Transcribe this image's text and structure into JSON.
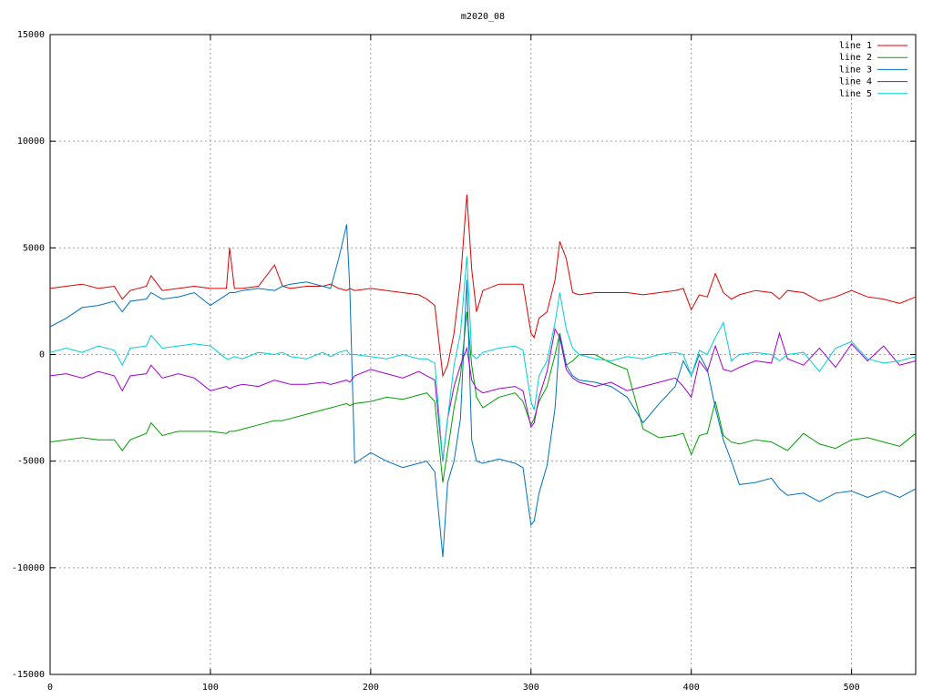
{
  "chart_data": {
    "type": "line",
    "title": "m2020_08",
    "x": [
      0,
      10,
      20,
      30,
      40,
      45,
      50,
      60,
      63,
      70,
      80,
      90,
      100,
      110,
      112,
      115,
      120,
      130,
      140,
      145,
      150,
      160,
      170,
      175,
      180,
      185,
      187,
      190,
      200,
      210,
      220,
      230,
      235,
      240,
      245,
      248,
      252,
      256,
      260,
      263,
      266,
      270,
      280,
      290,
      295,
      300,
      302,
      305,
      310,
      315,
      318,
      322,
      326,
      330,
      340,
      350,
      360,
      370,
      380,
      390,
      395,
      400,
      405,
      410,
      415,
      420,
      425,
      430,
      440,
      450,
      455,
      460,
      470,
      480,
      490,
      500,
      510,
      520,
      530,
      540
    ],
    "series": [
      {
        "name": "line 1",
        "color": "#e00000",
        "values": [
          3100,
          3200,
          3300,
          3100,
          3200,
          2600,
          3000,
          3200,
          3700,
          3000,
          3100,
          3200,
          3100,
          3100,
          5000,
          3100,
          3100,
          3200,
          4200,
          3200,
          3100,
          3200,
          3200,
          3300,
          3100,
          3000,
          3100,
          3000,
          3100,
          3000,
          2900,
          2800,
          2600,
          2300,
          -1000,
          -500,
          1000,
          3500,
          7500,
          4000,
          2000,
          3000,
          3300,
          3300,
          3300,
          1000,
          800,
          1700,
          2000,
          3500,
          5300,
          4500,
          2900,
          2800,
          2900,
          2900,
          2900,
          2800,
          2900,
          3000,
          3100,
          2100,
          2800,
          2700,
          3800,
          2900,
          2600,
          2800,
          3000,
          2900,
          2600,
          3000,
          2900,
          2500,
          2700,
          3000,
          2700,
          2600,
          2400,
          2700
        ]
      },
      {
        "name": "line 2",
        "color": "#00a000",
        "values": [
          -4100,
          -4000,
          -3900,
          -4000,
          -4000,
          -4500,
          -4000,
          -3700,
          -3200,
          -3800,
          -3600,
          -3600,
          -3600,
          -3700,
          -3600,
          -3600,
          -3500,
          -3300,
          -3100,
          -3100,
          -3000,
          -2800,
          -2600,
          -2500,
          -2400,
          -2300,
          -2400,
          -2300,
          -2200,
          -2000,
          -2100,
          -1900,
          -1800,
          -2200,
          -6000,
          -4500,
          -2500,
          -1000,
          2000,
          -500,
          -2000,
          -2500,
          -2000,
          -1800,
          -2200,
          -3300,
          -3000,
          -2200,
          -1500,
          0,
          1000,
          -500,
          -300,
          0,
          0,
          -400,
          -700,
          -3500,
          -3900,
          -3800,
          -3700,
          -4700,
          -3800,
          -3700,
          -2200,
          -3800,
          -4100,
          -4200,
          -4000,
          -4100,
          -4300,
          -4500,
          -3700,
          -4200,
          -4400,
          -4000,
          -3900,
          -4100,
          -4300,
          -3700
        ]
      },
      {
        "name": "line 3",
        "color": "#0072bd",
        "values": [
          1300,
          1700,
          2200,
          2300,
          2500,
          2000,
          2500,
          2600,
          2900,
          2600,
          2700,
          2900,
          2300,
          2800,
          2900,
          2900,
          3000,
          3100,
          3000,
          3200,
          3300,
          3400,
          3200,
          3100,
          4500,
          6100,
          3000,
          -5100,
          -4600,
          -5000,
          -5300,
          -5100,
          -5000,
          -5500,
          -9500,
          -6000,
          -5000,
          -3000,
          3500,
          -4000,
          -5000,
          -5100,
          -4900,
          -5100,
          -5300,
          -8000,
          -7800,
          -6500,
          -5200,
          -2500,
          900,
          -500,
          -1000,
          -1200,
          -1300,
          -1500,
          -2000,
          -3200,
          -2300,
          -1500,
          -300,
          -1000,
          0,
          -700,
          -2500,
          -4000,
          -5000,
          -6100,
          -6000,
          -5800,
          -6300,
          -6600,
          -6500,
          -6900,
          -6500,
          -6400,
          -6700,
          -6400,
          -6700,
          -6300
        ]
      },
      {
        "name": "line 4",
        "color": "#a000d0",
        "values": [
          -1000,
          -900,
          -1100,
          -800,
          -1000,
          -1700,
          -1000,
          -900,
          -500,
          -1100,
          -900,
          -1100,
          -1700,
          -1500,
          -1600,
          -1500,
          -1400,
          -1500,
          -1200,
          -1300,
          -1400,
          -1400,
          -1300,
          -1400,
          -1300,
          -1200,
          -1300,
          -1000,
          -700,
          -900,
          -1100,
          -800,
          -1000,
          -1200,
          -5000,
          -3000,
          -1500,
          -500,
          300,
          -1200,
          -1600,
          -1800,
          -1600,
          -1500,
          -1700,
          -3400,
          -3200,
          -2000,
          -800,
          1200,
          800,
          -700,
          -1100,
          -1300,
          -1500,
          -1300,
          -1700,
          -1500,
          -1300,
          -1100,
          -1500,
          -2000,
          -300,
          -800,
          400,
          -700,
          -800,
          -600,
          -300,
          -400,
          1000,
          -200,
          -500,
          300,
          -600,
          500,
          -300,
          400,
          -500,
          -300
        ]
      },
      {
        "name": "line 5",
        "color": "#00d0d0",
        "values": [
          100,
          300,
          100,
          400,
          200,
          -500,
          300,
          400,
          900,
          300,
          400,
          500,
          400,
          -200,
          -200,
          -100,
          -200,
          100,
          0,
          100,
          -100,
          -200,
          100,
          -100,
          100,
          200,
          0,
          0,
          -100,
          -200,
          0,
          -200,
          -200,
          -400,
          -5000,
          -3000,
          -500,
          1000,
          4600,
          0,
          -200,
          100,
          300,
          400,
          200,
          -2200,
          -2600,
          -1000,
          -300,
          1500,
          2900,
          1200,
          300,
          0,
          -200,
          -300,
          -100,
          -200,
          0,
          100,
          0,
          -1000,
          200,
          0,
          800,
          1500,
          -300,
          0,
          100,
          0,
          -300,
          0,
          100,
          -800,
          300,
          600,
          -200,
          -400,
          -300,
          -100
        ]
      }
    ],
    "xlim": [
      0,
      540
    ],
    "xticks": [
      0,
      100,
      200,
      300,
      400,
      500
    ],
    "ylim": [
      -15000,
      15000
    ],
    "yticks": [
      -15000,
      -10000,
      -5000,
      0,
      5000,
      10000,
      15000
    ],
    "grid": true,
    "legend": "top-right"
  }
}
